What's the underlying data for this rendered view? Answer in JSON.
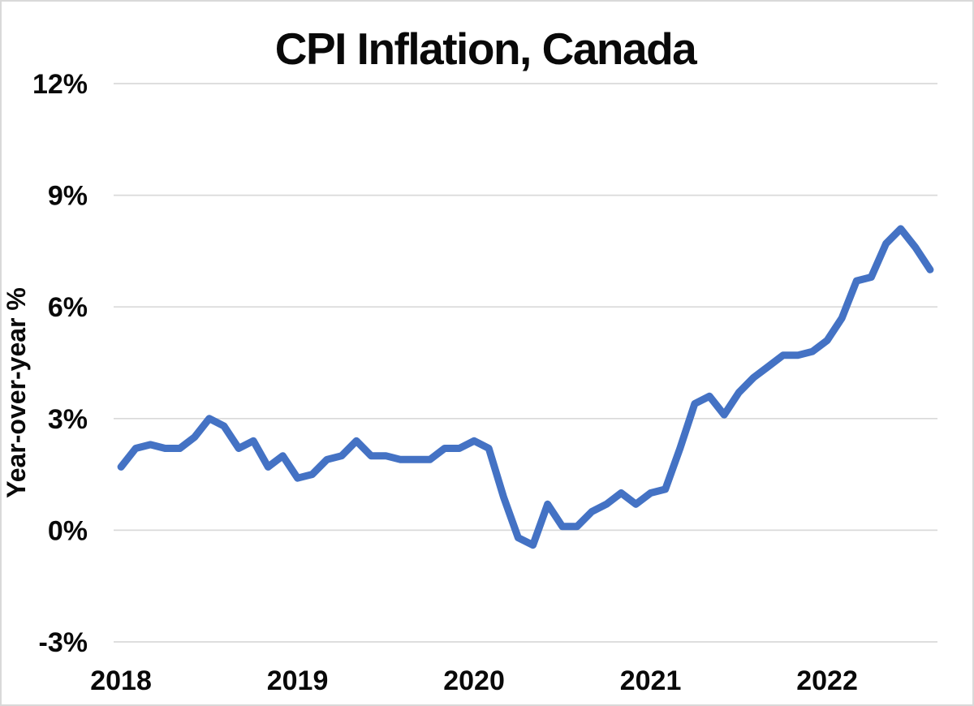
{
  "page": {
    "background_color": "#FFFFFF",
    "border_color": "#D9D9D9"
  },
  "chart_data": {
    "type": "line",
    "title": "CPI Inflation, Canada",
    "xlabel": "",
    "ylabel": "Year-over-year %",
    "ylim": [
      -3,
      12
    ],
    "grid": "horizontal-gridlines",
    "legend": "none",
    "line_color": "#4472C4",
    "gridline_color": "#D9D9D9",
    "text_color": "#090909",
    "yticks": [
      {
        "value": 12,
        "label": "12%"
      },
      {
        "value": 9,
        "label": "9%"
      },
      {
        "value": 6,
        "label": "6%"
      },
      {
        "value": 3,
        "label": "3%"
      },
      {
        "value": 0,
        "label": "0%"
      },
      {
        "value": -3,
        "label": "-3%"
      }
    ],
    "xticks": [
      {
        "index": 0,
        "label": "2018"
      },
      {
        "index": 12,
        "label": "2019"
      },
      {
        "index": 24,
        "label": "2020"
      },
      {
        "index": 36,
        "label": "2021"
      },
      {
        "index": 48,
        "label": "2022"
      }
    ],
    "x": [
      "2018-01",
      "2018-02",
      "2018-03",
      "2018-04",
      "2018-05",
      "2018-06",
      "2018-07",
      "2018-08",
      "2018-09",
      "2018-10",
      "2018-11",
      "2018-12",
      "2019-01",
      "2019-02",
      "2019-03",
      "2019-04",
      "2019-05",
      "2019-06",
      "2019-07",
      "2019-08",
      "2019-09",
      "2019-10",
      "2019-11",
      "2019-12",
      "2020-01",
      "2020-02",
      "2020-03",
      "2020-04",
      "2020-05",
      "2020-06",
      "2020-07",
      "2020-08",
      "2020-09",
      "2020-10",
      "2020-11",
      "2020-12",
      "2021-01",
      "2021-02",
      "2021-03",
      "2021-04",
      "2021-05",
      "2021-06",
      "2021-07",
      "2021-08",
      "2021-09",
      "2021-10",
      "2021-11",
      "2021-12",
      "2022-01",
      "2022-02",
      "2022-03",
      "2022-04",
      "2022-05",
      "2022-06",
      "2022-07",
      "2022-08"
    ],
    "series": [
      {
        "name": "CPI inflation, year-over-year %",
        "values": [
          1.7,
          2.2,
          2.3,
          2.2,
          2.2,
          2.5,
          3.0,
          2.8,
          2.2,
          2.4,
          1.7,
          2.0,
          1.4,
          1.5,
          1.9,
          2.0,
          2.4,
          2.0,
          2.0,
          1.9,
          1.9,
          1.9,
          2.2,
          2.2,
          2.4,
          2.2,
          0.9,
          -0.2,
          -0.4,
          0.7,
          0.1,
          0.1,
          0.5,
          0.7,
          1.0,
          0.7,
          1.0,
          1.1,
          2.2,
          3.4,
          3.6,
          3.1,
          3.7,
          4.1,
          4.4,
          4.7,
          4.7,
          4.8,
          5.1,
          5.7,
          6.7,
          6.8,
          7.7,
          8.1,
          7.6,
          7.0
        ]
      }
    ]
  }
}
